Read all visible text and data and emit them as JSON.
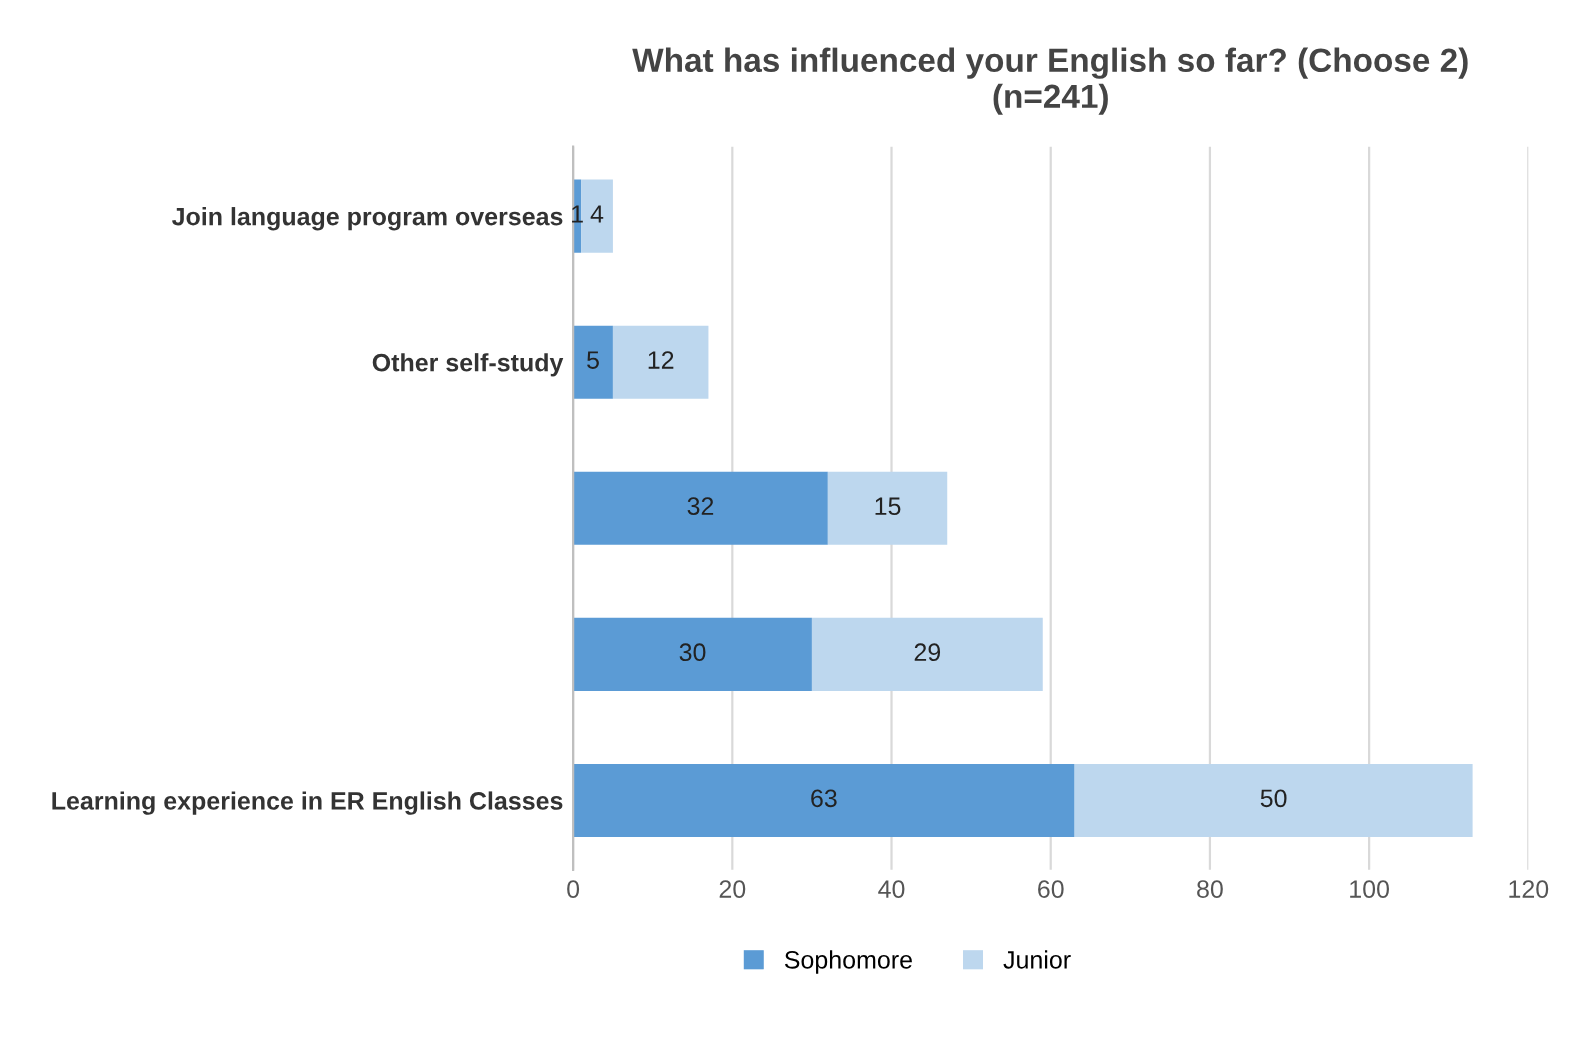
{
  "chart_data": {
    "type": "bar",
    "orientation": "horizontal",
    "stacked": true,
    "title": "What has influenced your English so far? (Choose 2)\n(n=241)",
    "categories": [
      "Join language program overseas",
      "Other self-study",
      null,
      null,
      "Learning experience in ER English Classes"
    ],
    "series": [
      {
        "name": "Sophomore",
        "color": "#5b9bd5",
        "values": [
          1,
          5,
          32,
          30,
          63
        ]
      },
      {
        "name": "Junior",
        "color": "#bdd7ee",
        "values": [
          4,
          12,
          15,
          29,
          50
        ]
      }
    ],
    "xlim": [
      0,
      120
    ],
    "xticks": [
      0,
      20,
      40,
      60,
      80,
      100,
      120
    ],
    "grid": "x",
    "legend": "bottom",
    "data_labels": true
  }
}
